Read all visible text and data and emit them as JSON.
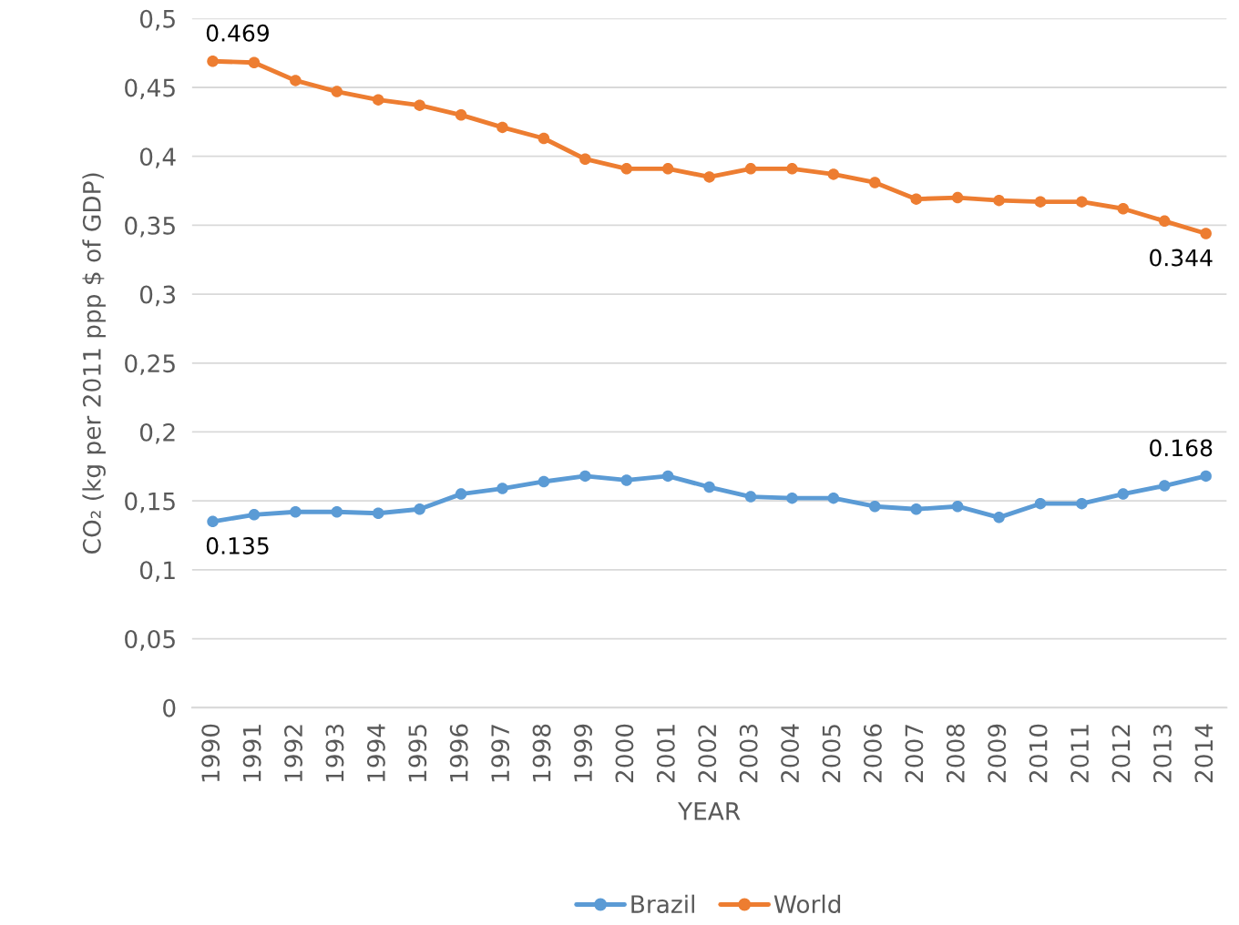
{
  "chart_data": {
    "type": "line",
    "xlabel": "YEAR",
    "ylabel": "CO₂ (kg per 2011 ppp $ of GDP)",
    "categories": [
      "1990",
      "1991",
      "1992",
      "1993",
      "1994",
      "1995",
      "1996",
      "1997",
      "1998",
      "1999",
      "2000",
      "2001",
      "2002",
      "2003",
      "2004",
      "2005",
      "2006",
      "2007",
      "2008",
      "2009",
      "2010",
      "2011",
      "2012",
      "2013",
      "2014"
    ],
    "series": [
      {
        "name": "Brazil",
        "color": "#5b9bd5",
        "values": [
          0.135,
          0.14,
          0.142,
          0.142,
          0.141,
          0.144,
          0.155,
          0.159,
          0.164,
          0.168,
          0.165,
          0.168,
          0.16,
          0.153,
          0.152,
          0.152,
          0.146,
          0.144,
          0.146,
          0.138,
          0.148,
          0.148,
          0.155,
          0.161,
          0.168
        ],
        "value_labels": [
          "0.135",
          null,
          null,
          null,
          null,
          null,
          null,
          null,
          null,
          null,
          null,
          null,
          null,
          null,
          null,
          null,
          null,
          null,
          null,
          null,
          null,
          null,
          null,
          null,
          "0.168"
        ]
      },
      {
        "name": "World",
        "color": "#ed7d31",
        "values": [
          0.469,
          0.468,
          0.455,
          0.447,
          0.441,
          0.437,
          0.43,
          0.421,
          0.413,
          0.398,
          0.391,
          0.391,
          0.385,
          0.391,
          0.391,
          0.387,
          0.381,
          0.369,
          0.37,
          0.368,
          0.367,
          0.367,
          0.362,
          0.353,
          0.344
        ],
        "value_labels": [
          "0.469",
          null,
          null,
          null,
          null,
          null,
          null,
          null,
          null,
          null,
          null,
          null,
          null,
          null,
          null,
          null,
          null,
          null,
          null,
          null,
          null,
          null,
          null,
          null,
          "0.344"
        ]
      }
    ],
    "ylim": [
      0,
      0.5
    ],
    "yticks": [
      {
        "value": 0,
        "label": "0"
      },
      {
        "value": 0.05,
        "label": "0,05"
      },
      {
        "value": 0.1,
        "label": "0,1"
      },
      {
        "value": 0.15,
        "label": "0,15"
      },
      {
        "value": 0.2,
        "label": "0,2"
      },
      {
        "value": 0.25,
        "label": "0,25"
      },
      {
        "value": 0.3,
        "label": "0,3"
      },
      {
        "value": 0.35,
        "label": "0,35"
      },
      {
        "value": 0.4,
        "label": "0,4"
      },
      {
        "value": 0.45,
        "label": "0,45"
      },
      {
        "value": 0.5,
        "label": "0,5"
      }
    ],
    "grid": "y",
    "legend": "bottom",
    "marker": "circle",
    "line_style": "solid"
  }
}
